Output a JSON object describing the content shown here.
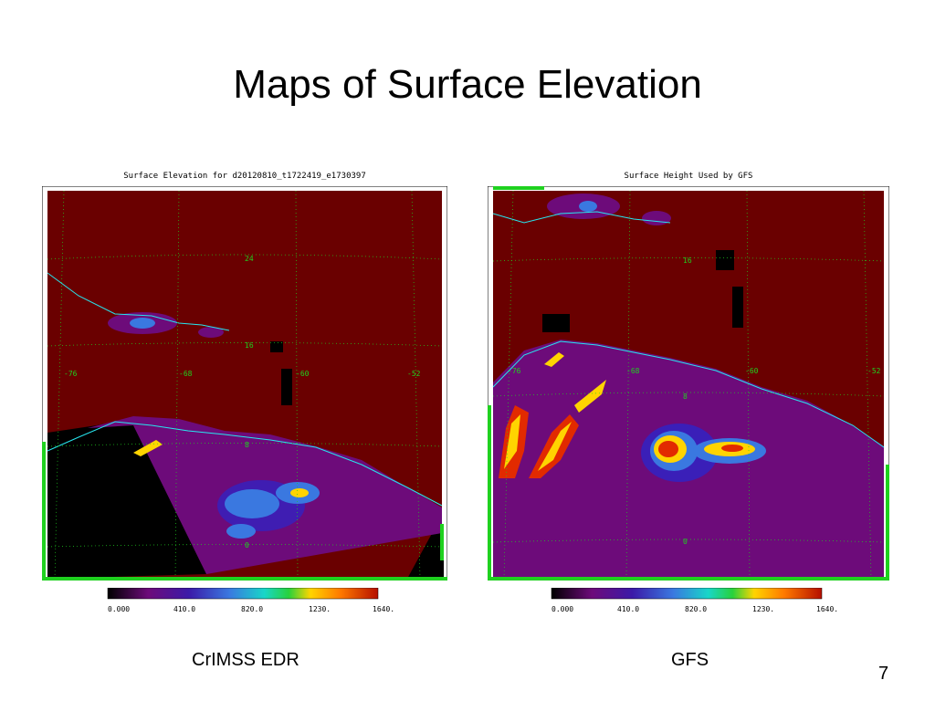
{
  "slide": {
    "title": "Maps of Surface Elevation",
    "page_number": "7"
  },
  "maps": [
    {
      "id": "left",
      "title": "Surface Elevation for d20120810_t1722419_e1730397",
      "caption": "CrIMSS EDR",
      "lat_labels": [
        "24",
        "16",
        "8",
        "0"
      ],
      "lon_labels": [
        "-76",
        "-68",
        "-60",
        "-52"
      ],
      "colorbar_ticks": [
        "0.000",
        "410.0",
        "820.0",
        "1230.",
        "1640."
      ]
    },
    {
      "id": "right",
      "title": "Surface Height Used by GFS",
      "caption": "GFS",
      "lat_labels": [
        "16",
        "8",
        "0"
      ],
      "lon_labels": [
        "-76",
        "-68",
        "-60",
        "-52"
      ],
      "colorbar_ticks": [
        "0.000",
        "410.0",
        "820.0",
        "1230.",
        "1640."
      ]
    }
  ],
  "colors": {
    "ocean": "#6a0000",
    "land_low": "#6d0b7a",
    "land_mid": "#3a78e0",
    "land_high": "#ffd400",
    "peak": "#e22a00",
    "coast": "#27e6ee",
    "grid": "#1fd11f",
    "nodata": "#000000"
  }
}
